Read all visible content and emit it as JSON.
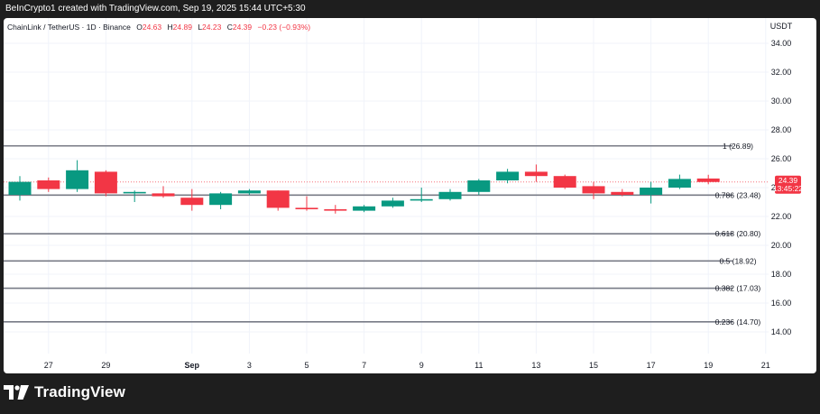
{
  "header": {
    "text": "BeInCrypto1 created with TradingView.com, Sep 19, 2025 15:44 UTC+5:30"
  },
  "legend": {
    "symbol": "ChainLink / TetherUS · 1D · Binance",
    "o_label": "O",
    "o": "24.63",
    "h_label": "H",
    "h": "24.89",
    "l_label": "L",
    "l": "24.23",
    "c_label": "C",
    "c": "24.39",
    "change": "−0.23 (−0.93%)"
  },
  "colors": {
    "up": "#089981",
    "down": "#f23645",
    "fib": "#787b86",
    "grid": "#f0f3fa",
    "text": "#131722"
  },
  "price_badge": {
    "price": "24.39",
    "countdown": "13:45:22"
  },
  "footer": {
    "logo_text": "TradingView"
  },
  "chart_data": {
    "type": "candlestick",
    "title": "ChainLink / TetherUS · 1D · Binance",
    "ylabel": "USDT",
    "ylim": [
      13,
      35
    ],
    "y_ticks": [
      "34.00",
      "32.00",
      "30.00",
      "28.00",
      "26.00",
      "24.00",
      "22.00",
      "20.00",
      "18.00",
      "16.00",
      "14.00"
    ],
    "x_ticks": [
      {
        "label": "27",
        "x": 1
      },
      {
        "label": "29",
        "x": 3
      },
      {
        "label": "Sep",
        "x": 6
      },
      {
        "label": "3",
        "x": 8
      },
      {
        "label": "5",
        "x": 10
      },
      {
        "label": "7",
        "x": 12
      },
      {
        "label": "9",
        "x": 14
      },
      {
        "label": "11",
        "x": 16
      },
      {
        "label": "13",
        "x": 18
      },
      {
        "label": "15",
        "x": 20
      },
      {
        "label": "17",
        "x": 22
      },
      {
        "label": "19",
        "x": 24
      },
      {
        "label": "21",
        "x": 26
      }
    ],
    "candles": [
      {
        "open": 23.5,
        "high": 24.8,
        "low": 23.1,
        "close": 24.4
      },
      {
        "open": 24.5,
        "high": 24.7,
        "low": 23.7,
        "close": 23.9
      },
      {
        "open": 23.9,
        "high": 25.9,
        "low": 23.7,
        "close": 25.2
      },
      {
        "open": 25.1,
        "high": 25.2,
        "low": 23.4,
        "close": 23.6
      },
      {
        "open": 23.6,
        "high": 23.8,
        "low": 23.0,
        "close": 23.7
      },
      {
        "open": 23.6,
        "high": 24.1,
        "low": 23.3,
        "close": 23.4
      },
      {
        "open": 23.3,
        "high": 23.9,
        "low": 22.4,
        "close": 22.8
      },
      {
        "open": 22.8,
        "high": 23.7,
        "low": 22.5,
        "close": 23.6
      },
      {
        "open": 23.6,
        "high": 23.9,
        "low": 23.5,
        "close": 23.8
      },
      {
        "open": 23.8,
        "high": 23.8,
        "low": 22.4,
        "close": 22.6
      },
      {
        "open": 22.6,
        "high": 23.4,
        "low": 22.4,
        "close": 22.5
      },
      {
        "open": 22.5,
        "high": 22.8,
        "low": 22.2,
        "close": 22.4
      },
      {
        "open": 22.4,
        "high": 22.8,
        "low": 22.3,
        "close": 22.7
      },
      {
        "open": 22.7,
        "high": 23.3,
        "low": 22.6,
        "close": 23.1
      },
      {
        "open": 23.1,
        "high": 24.0,
        "low": 23.0,
        "close": 23.2
      },
      {
        "open": 23.2,
        "high": 23.9,
        "low": 23.1,
        "close": 23.7
      },
      {
        "open": 23.7,
        "high": 24.6,
        "low": 23.5,
        "close": 24.5
      },
      {
        "open": 24.5,
        "high": 25.3,
        "low": 24.3,
        "close": 25.1
      },
      {
        "open": 25.1,
        "high": 25.6,
        "low": 24.4,
        "close": 24.8
      },
      {
        "open": 24.8,
        "high": 24.9,
        "low": 23.9,
        "close": 24.0
      },
      {
        "open": 24.1,
        "high": 24.4,
        "low": 23.2,
        "close": 23.6
      },
      {
        "open": 23.7,
        "high": 23.9,
        "low": 23.4,
        "close": 23.5
      },
      {
        "open": 23.5,
        "high": 24.4,
        "low": 22.9,
        "close": 24.0
      },
      {
        "open": 24.0,
        "high": 24.9,
        "low": 23.9,
        "close": 24.6
      },
      {
        "open": 24.63,
        "high": 24.89,
        "low": 24.23,
        "close": 24.39
      }
    ],
    "fib_levels": [
      {
        "label": "1 (26.89)",
        "value": 26.89
      },
      {
        "label": "0.786 (23.48)",
        "value": 23.48
      },
      {
        "label": "0.618 (20.80)",
        "value": 20.8
      },
      {
        "label": "0.5 (18.92)",
        "value": 18.92
      },
      {
        "label": "0.382 (17.03)",
        "value": 17.03
      },
      {
        "label": "0.236 (14.70)",
        "value": 14.7
      }
    ],
    "last_price": 24.39
  }
}
